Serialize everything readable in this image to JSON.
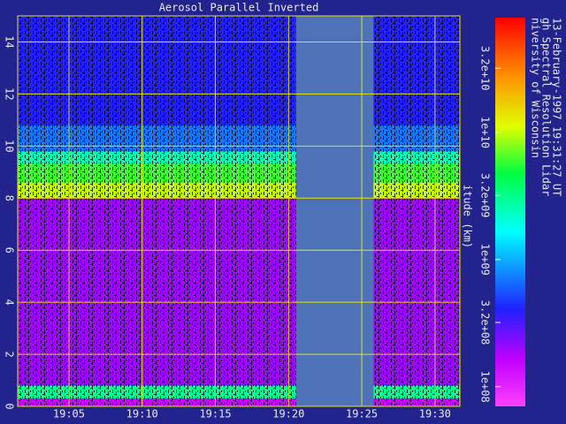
{
  "chart_data": {
    "type": "lidar-image",
    "title": "Aerosol Parallel Inverted",
    "ylabel": "itude (km)",
    "info": [
      "niversity of Wisconsin",
      "gh Spectral Resolution Lidar",
      "13-February-1997 19:31:27 UT"
    ],
    "xlim": [
      1.5,
      31.7
    ],
    "xticks": [
      {
        "value": 5,
        "label": "19:05"
      },
      {
        "value": 10,
        "label": "19:10"
      },
      {
        "value": 15,
        "label": "19:15"
      },
      {
        "value": 20,
        "label": "19:20"
      },
      {
        "value": 25,
        "label": "19:25"
      },
      {
        "value": 30,
        "label": "19:30"
      }
    ],
    "ylim": [
      0,
      15
    ],
    "yticks": [
      0,
      2,
      4,
      6,
      8,
      10,
      12,
      14
    ],
    "grid": true,
    "clim": [
      70000000,
      80000000000
    ],
    "color_log": true,
    "cticks": [
      {
        "value": 100000000,
        "label": "1e+08"
      },
      {
        "value": 320000000,
        "label": "3.2e+08"
      },
      {
        "value": 1000000000,
        "label": "1e+09"
      },
      {
        "value": 3200000000,
        "label": "3.2e+09"
      },
      {
        "value": 10000000000,
        "label": "1e+10"
      },
      {
        "value": 32000000000,
        "label": "3.2e+10"
      }
    ],
    "layers": [
      {
        "bottom": 0,
        "top": 0.3,
        "value": 150000000
      },
      {
        "bottom": 0.3,
        "top": 0.8,
        "value": 3000000000
      },
      {
        "bottom": 0.8,
        "top": 8.0,
        "value": 200000000
      },
      {
        "bottom": 8.0,
        "top": 8.6,
        "value": 10000000000
      },
      {
        "bottom": 8.6,
        "top": 9.3,
        "value": 6000000000
      },
      {
        "bottom": 9.3,
        "top": 9.8,
        "value": 2500000000
      },
      {
        "bottom": 9.8,
        "top": 10.8,
        "value": 700000000
      },
      {
        "bottom": 10.8,
        "top": 15,
        "value": 400000000
      }
    ],
    "gaps": [
      [
        20.5,
        25.8
      ]
    ]
  }
}
